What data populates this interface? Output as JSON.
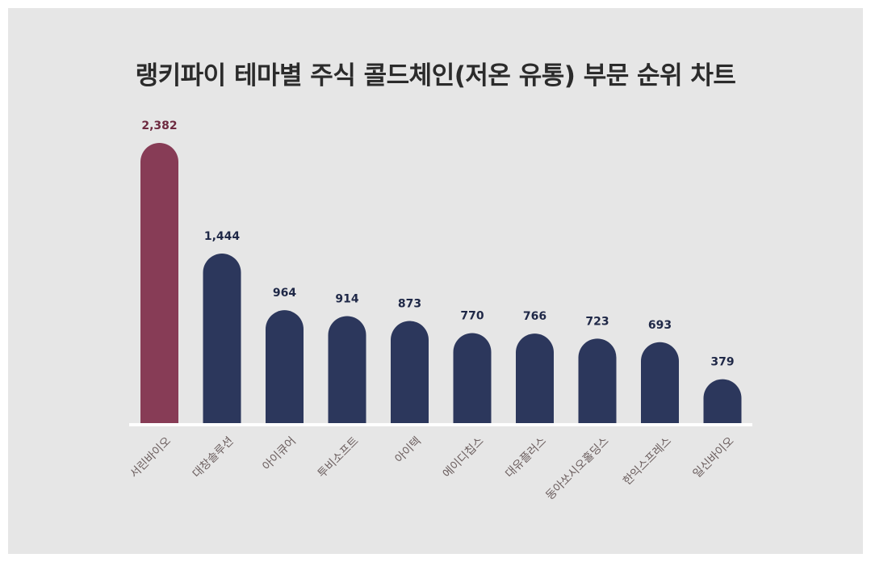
{
  "chart_data": {
    "type": "bar",
    "title": "랭키파이 테마별 주식 콜드체인(저온 유통) 부문 순위 차트",
    "categories": [
      "서린바이오",
      "대창솔루션",
      "아이큐어",
      "투비소프트",
      "아이텍",
      "에이디칩스",
      "대유플러스",
      "동아쏘시오홀딩스",
      "한익스프레스",
      "일신바이오"
    ],
    "values": [
      2382,
      1444,
      964,
      914,
      873,
      770,
      766,
      723,
      693,
      379
    ],
    "value_labels": [
      "2,382",
      "1,444",
      "964",
      "914",
      "873",
      "770",
      "766",
      "723",
      "693",
      "379"
    ],
    "ylim": [
      0,
      2382
    ],
    "grid": false,
    "legend": "none",
    "highlight_index": 0,
    "colors": {
      "highlight": "#873c56",
      "bar": "#2c375c",
      "highlight_label": "#6e2a40",
      "label": "#1f2847",
      "baseline": "#ffffff"
    }
  }
}
